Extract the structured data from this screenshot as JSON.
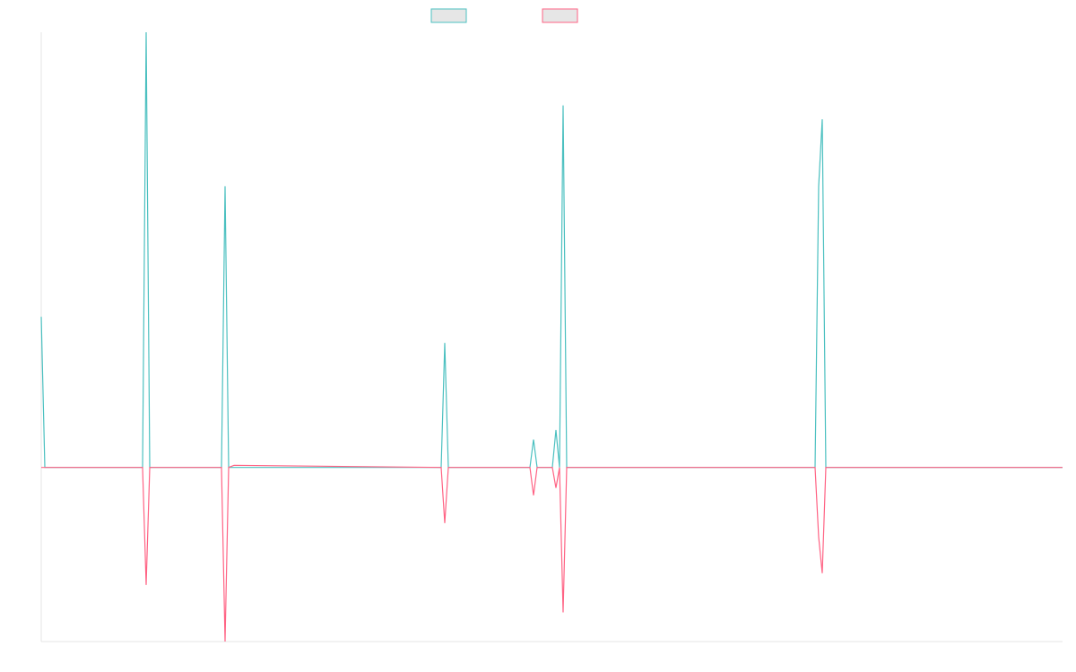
{
  "chart_data": {
    "type": "line",
    "x": [
      0,
      4,
      113,
      117,
      121,
      201,
      205,
      209,
      215,
      446,
      450,
      454,
      545,
      549,
      553,
      570,
      574,
      578,
      582,
      586,
      863,
      867,
      871,
      875,
      1139
    ],
    "series": [
      {
        "color": "#4bc0c0",
        "values": [
          0.346,
          0,
          0,
          1,
          0,
          0,
          0.646,
          0,
          0,
          0,
          0.286,
          0,
          0,
          0.064,
          0,
          0,
          0.086,
          0,
          0.832,
          0,
          0,
          0.646,
          0.8,
          0,
          0
        ]
      },
      {
        "color": "#ff6384",
        "values": [
          0,
          0,
          0,
          -0.27,
          0,
          0,
          -0.4,
          0,
          0.005,
          0,
          -0.128,
          0,
          0,
          -0.064,
          0,
          0,
          -0.047,
          0,
          -0.333,
          0,
          0,
          -0.16,
          -0.243,
          0,
          0
        ]
      }
    ],
    "xlim": [
      0,
      1139
    ],
    "ylim": [
      -0.4,
      1
    ]
  }
}
